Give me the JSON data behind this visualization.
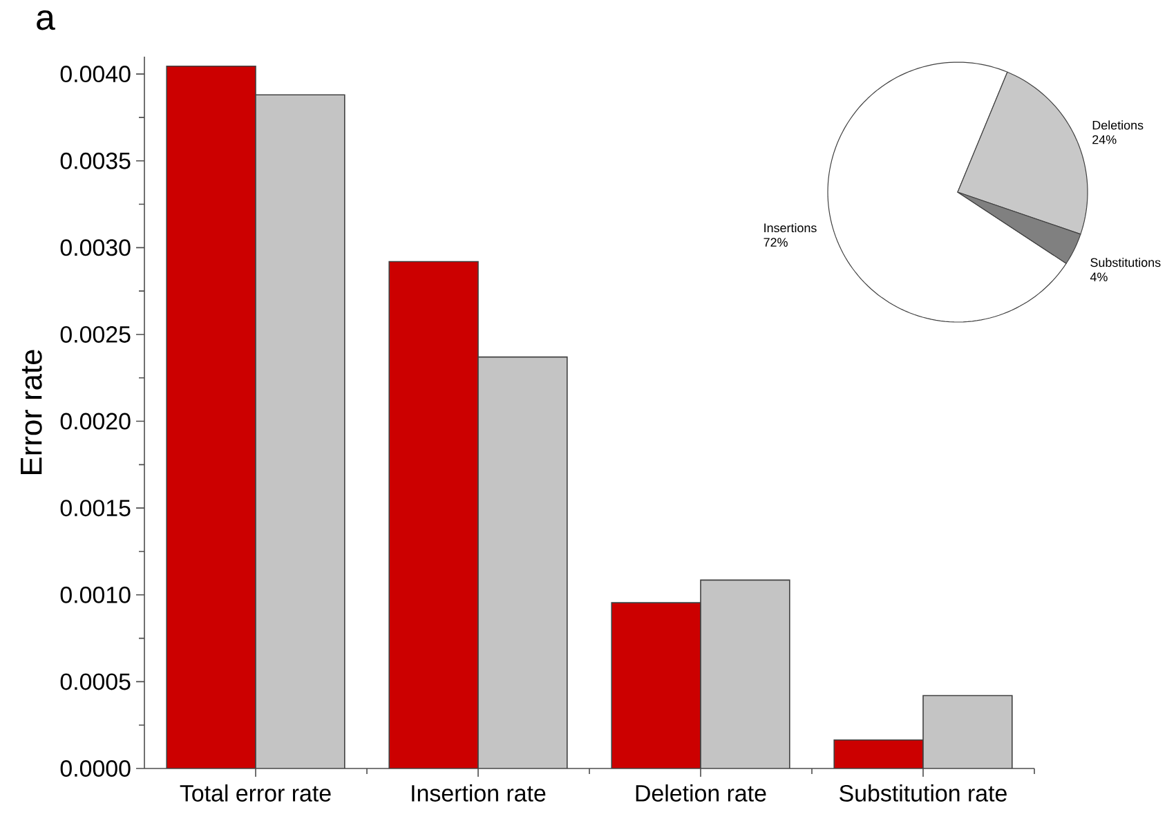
{
  "chart_data": [
    {
      "type": "bar",
      "annotations": [
        "a"
      ],
      "ylabel": "Error rate",
      "categories": [
        "Total error rate",
        "Insertion rate",
        "Deletion rate",
        "Substitution rate"
      ],
      "series": [
        {
          "color": "#cc0000",
          "values": [
            0.004045,
            0.00292,
            0.000955,
            0.000164
          ]
        },
        {
          "color": "#c4c4c4",
          "values": [
            0.00388,
            0.00237,
            0.001085,
            0.00042
          ]
        }
      ],
      "ylim": [
        0,
        0.0041
      ],
      "yticks": [
        {
          "value": 0,
          "label": "0.0000"
        },
        {
          "value": 0.0005,
          "label": "0.0005"
        },
        {
          "value": 0.001,
          "label": "0.0010"
        },
        {
          "value": 0.0015,
          "label": "0.0015"
        },
        {
          "value": 0.002,
          "label": "0.0020"
        },
        {
          "value": 0.0025,
          "label": "0.0025"
        },
        {
          "value": 0.003,
          "label": "0.0030"
        },
        {
          "value": 0.0035,
          "label": "0.0035"
        },
        {
          "value": 0.004,
          "label": "0.0040"
        }
      ]
    },
    {
      "type": "pie",
      "categories": [
        "Insertions",
        "Deletions",
        "Substitutions"
      ],
      "values": [
        72,
        24,
        4
      ],
      "colors": [
        "#ffffff",
        "#c8c8c8",
        "#808080"
      ],
      "value_labels": [
        "72%",
        "24%",
        "4%"
      ]
    }
  ]
}
